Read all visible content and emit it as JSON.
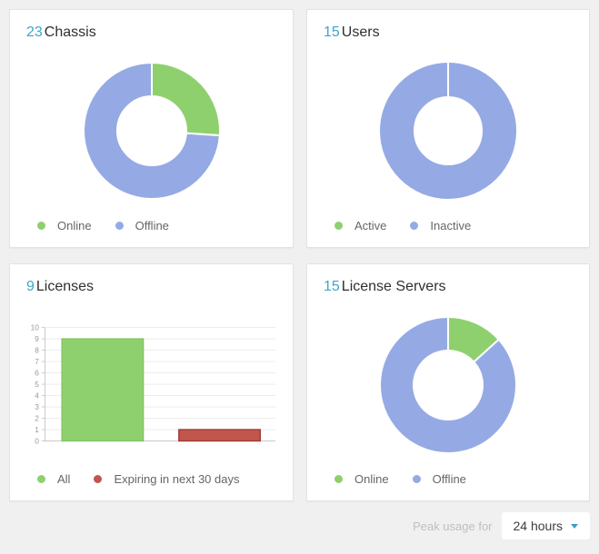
{
  "colors": {
    "accent_number": "#3ea6c9",
    "green": "#8fd06e",
    "blue": "#95aae4",
    "red": "#c1564d",
    "red_border": "#a23a31",
    "green_border": "#82c562",
    "page_background": "#f0f0f1",
    "card_background": "#ffffff",
    "legend_text": "#666666",
    "axis_text": "#9a9a9a",
    "gridline": "#eaeaea",
    "axis_line": "#c9c9c9",
    "caret": "#3b9ec6"
  },
  "cards": [
    {
      "count": "23",
      "title": "Chassis"
    },
    {
      "count": "15",
      "title": "Users"
    },
    {
      "count": "9",
      "title": "Licenses"
    },
    {
      "count": "15",
      "title": "License Servers"
    }
  ],
  "footer": {
    "label": "Peak usage for",
    "value": "24 hours"
  },
  "chart_data": [
    {
      "id": "chassis",
      "type": "donut",
      "title": "23 Chassis",
      "total": 23,
      "legend_position": "bottom-left",
      "segments": [
        {
          "label": "Online",
          "value": 6,
          "color": "#8fd06e"
        },
        {
          "label": "Offline",
          "value": 17,
          "color": "#95aae4"
        }
      ]
    },
    {
      "id": "users",
      "type": "donut",
      "title": "15 Users",
      "total": 15,
      "legend_position": "bottom-left",
      "segments": [
        {
          "label": "Active",
          "value": 0,
          "color": "#8fd06e"
        },
        {
          "label": "Inactive",
          "value": 15,
          "color": "#95aae4"
        }
      ]
    },
    {
      "id": "licenses",
      "type": "bar",
      "title": "9 Licenses",
      "categories": [
        "All",
        "Expiring in next 30 days"
      ],
      "values": [
        9,
        1
      ],
      "bar_colors": [
        "#8fd06e",
        "#c1564d"
      ],
      "bar_borders": [
        "#82c562",
        "#a23a31"
      ],
      "xlabel": "",
      "ylabel": "",
      "ylim": [
        0,
        10
      ],
      "ytick_step": 1,
      "grid": true,
      "legend_position": "bottom-left"
    },
    {
      "id": "license_servers",
      "type": "donut",
      "title": "15 License Servers",
      "total": 15,
      "legend_position": "bottom-left",
      "segments": [
        {
          "label": "Online",
          "value": 2,
          "color": "#8fd06e"
        },
        {
          "label": "Offline",
          "value": 13,
          "color": "#95aae4"
        }
      ]
    }
  ]
}
